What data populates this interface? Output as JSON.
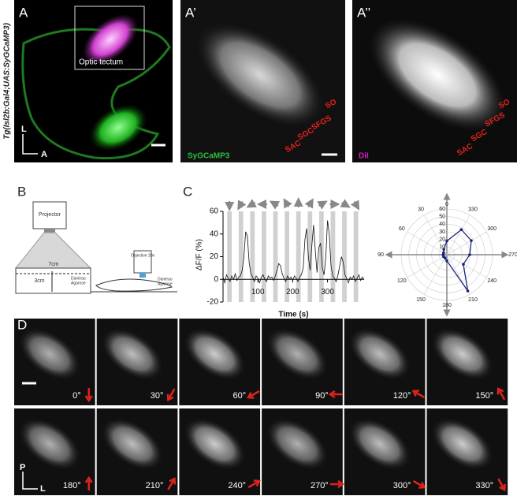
{
  "panel_A": {
    "label": "A",
    "inset": "Optic tectum",
    "axis_l": "L",
    "axis_a": "A",
    "genotype": "Tg(Isl2b:Gal4;UAS:SyGCaMP3)"
  },
  "panel_A1": {
    "label": "A’",
    "layers": [
      "SO",
      "SFGS",
      "SGC",
      "SAC"
    ],
    "channel": "SyGCaMP3"
  },
  "panel_A2": {
    "label": "A’’",
    "layers": [
      "SO",
      "SFGS",
      "SGC",
      "SAC"
    ],
    "channel": "DiI"
  },
  "panel_B": {
    "label": "B",
    "projector": "Projector",
    "width": "7cm",
    "depth": "3cm",
    "medium": "Danieau",
    "gel": "Agarose",
    "objective": "Objective 20x",
    "medium2": "Danieau",
    "gel2": "Agarose"
  },
  "panel_C": {
    "label": "C"
  },
  "chart_data": [
    {
      "type": "line",
      "ylabel": "ΔF/F (%)",
      "xlabel": "Time (s)",
      "color": "#111111",
      "xlim": [
        0,
        405
      ],
      "xticks": [
        100,
        200,
        300
      ],
      "ylim": [
        -20,
        60
      ],
      "yticks": [
        -20,
        0,
        20,
        40,
        60
      ],
      "stimulus_intervals": [
        [
          12,
          25
        ],
        [
          45,
          58
        ],
        [
          78,
          91
        ],
        [
          111,
          124
        ],
        [
          144,
          157
        ],
        [
          177,
          190
        ],
        [
          210,
          223
        ],
        [
          243,
          256
        ],
        [
          276,
          289
        ],
        [
          309,
          322
        ],
        [
          342,
          355
        ],
        [
          375,
          388
        ]
      ],
      "x": [
        0,
        5,
        10,
        15,
        20,
        25,
        30,
        35,
        40,
        45,
        50,
        55,
        60,
        65,
        70,
        75,
        80,
        85,
        90,
        95,
        100,
        105,
        110,
        115,
        120,
        125,
        130,
        135,
        140,
        145,
        150,
        155,
        160,
        165,
        170,
        175,
        180,
        185,
        190,
        195,
        200,
        205,
        210,
        215,
        220,
        225,
        230,
        235,
        240,
        245,
        250,
        255,
        260,
        265,
        270,
        275,
        280,
        285,
        290,
        295,
        300,
        305,
        310,
        315,
        320,
        325,
        330,
        335,
        340,
        345,
        350,
        355,
        360,
        365,
        370,
        375,
        380,
        385,
        390,
        395,
        400,
        405
      ],
      "values": [
        2,
        -3,
        4,
        1,
        -2,
        3,
        0,
        5,
        -1,
        2,
        3,
        8,
        20,
        42,
        38,
        15,
        5,
        2,
        -2,
        3,
        1,
        -3,
        2,
        4,
        0,
        -2,
        3,
        1,
        2,
        -1,
        3,
        8,
        14,
        12,
        5,
        1,
        -2,
        3,
        0,
        2,
        -1,
        3,
        1,
        -2,
        2,
        4,
        10,
        35,
        45,
        20,
        8,
        30,
        48,
        25,
        6,
        28,
        32,
        10,
        4,
        20,
        52,
        40,
        12,
        3,
        1,
        -2,
        4,
        12,
        20,
        15,
        4,
        1,
        -3,
        2,
        0,
        3,
        -2,
        1,
        4,
        -1,
        2,
        0
      ]
    },
    {
      "type": "polar",
      "color": "#1a237e",
      "angles": [
        0,
        30,
        60,
        90,
        120,
        150,
        180,
        210,
        240,
        270,
        300,
        330
      ],
      "values": [
        18,
        8,
        5,
        5,
        5,
        5,
        8,
        55,
        25,
        30,
        37,
        38
      ],
      "rlim": [
        0,
        60
      ],
      "rticks": [
        0,
        10,
        20,
        30,
        40,
        50,
        60
      ]
    }
  ],
  "panel_D": {
    "label": "D",
    "axis_p": "P",
    "axis_l": "L",
    "tiles": [
      "0°",
      "30°",
      "60°",
      "90°",
      "120°",
      "150°",
      "180°",
      "210°",
      "240°",
      "270°",
      "300°",
      "330°"
    ]
  }
}
